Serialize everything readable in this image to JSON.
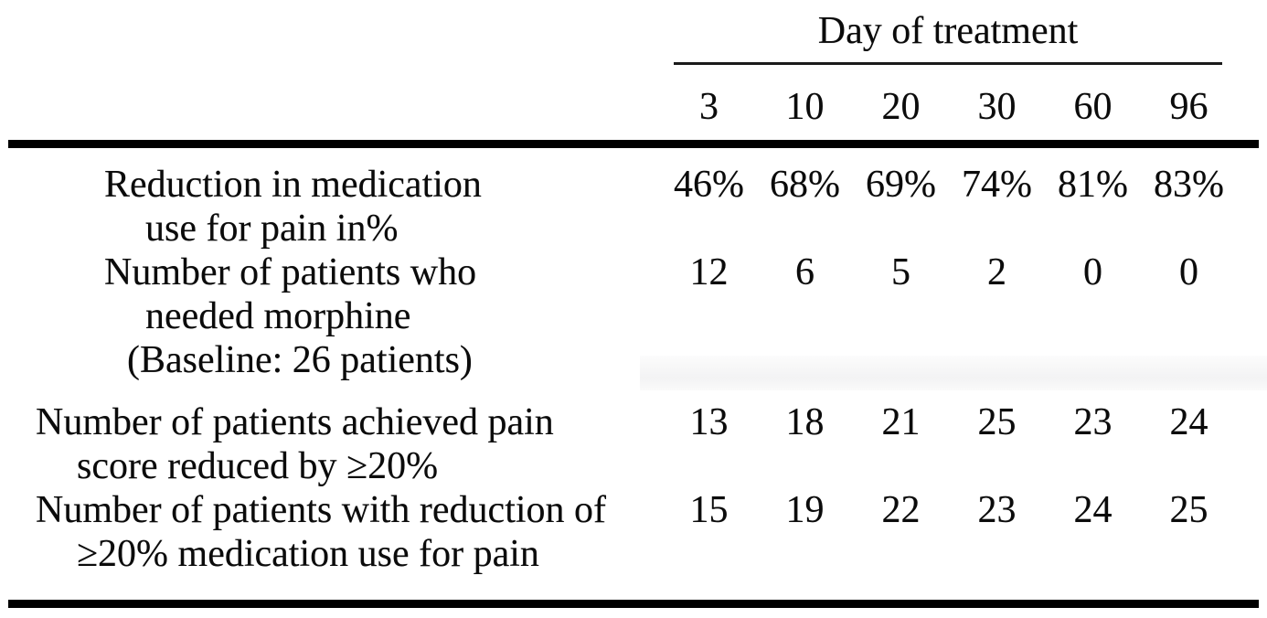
{
  "table": {
    "header": {
      "day_group_label": "Day of treatment",
      "day_columns": [
        "3",
        "10",
        "20",
        "30",
        "60",
        "96"
      ]
    },
    "rows": [
      {
        "label_lines": [
          "Reduction in medication",
          "use for pain in%"
        ],
        "values": [
          "46%",
          "68%",
          "69%",
          "74%",
          "81%",
          "83%"
        ]
      },
      {
        "label_lines": [
          "Number of patients who",
          "needed morphine",
          "(Baseline: 26 patients)"
        ],
        "values": [
          "12",
          "6",
          "5",
          "2",
          "0",
          "0"
        ]
      },
      {
        "label_lines": [
          "Number of patients achieved pain",
          "score reduced by ≥20%"
        ],
        "values": [
          "13",
          "18",
          "21",
          "25",
          "23",
          "24"
        ]
      },
      {
        "label_lines": [
          "Number of patients with reduction of",
          "≥20% medication use for pain"
        ],
        "values": [
          "15",
          "19",
          "22",
          "23",
          "24",
          "25"
        ]
      }
    ]
  },
  "colors": {
    "text": "#0b0b0b",
    "thick_rule": "#000000",
    "thin_rule": "#1a1a1a",
    "background": "#ffffff"
  }
}
